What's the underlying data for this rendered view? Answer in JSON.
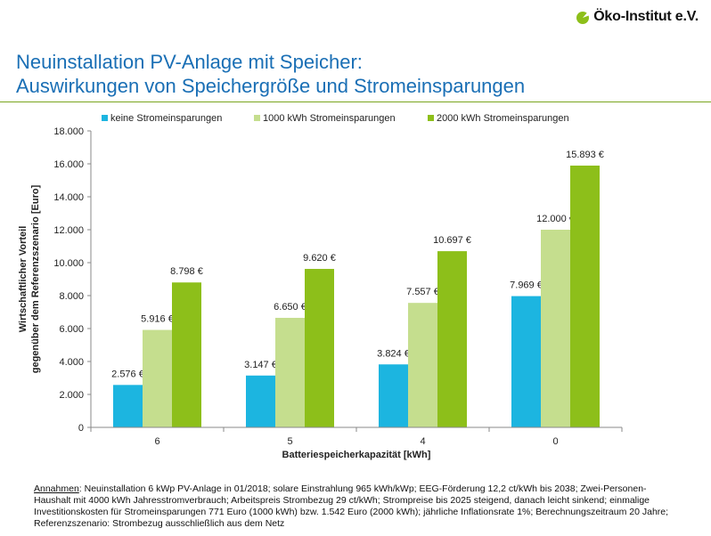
{
  "logo": {
    "text": "Öko-Institut e.V.",
    "mark_color": "#8dbf1a"
  },
  "title": {
    "line1": "Neuinstallation PV-Anlage mit Speicher:",
    "line2": "Auswirkungen von Speichergröße und Stromeinsparungen"
  },
  "notes": {
    "heading": "Annahmen",
    "text": ": Neuinstallation 6 kWp PV-Anlage in 01/2018; solare Einstrahlung 965 kWh/kWp; EEG-Förderung 12,2 ct/kWh bis 2038; Zwei-Personen-Haushalt mit 4000 kWh Jahresstromverbrauch; Arbeitspreis Strombezug 29 ct/kWh; Strompreise bis 2025 steigend, danach leicht sinkend; einmalige Investitionskosten für Stromeinsparungen 771 Euro (1000 kWh) bzw. 1.542 Euro (2000 kWh); jährliche Inflationsrate 1%; Berechnungszeitraum 20 Jahre; Referenzszenario: Strombezug ausschließlich aus dem Netz"
  },
  "chart_data": {
    "type": "bar",
    "categories": [
      "6",
      "5",
      "4",
      "0"
    ],
    "xlabel": "Batteriespeicherkapazität [kWh]",
    "ylabel_line1": "Wirtschaftlicher Vorteil",
    "ylabel_line2": "gegenüber dem Referenzszenario [Euro]",
    "ylim": [
      0,
      18000
    ],
    "ytick_step": 2000,
    "ytick_labels": [
      "0",
      "2.000",
      "4.000",
      "6.000",
      "8.000",
      "10.000",
      "12.000",
      "14.000",
      "16.000",
      "18.000"
    ],
    "grid": false,
    "legend_position": "top",
    "series": [
      {
        "name": "keine Stromeinsparungen",
        "color": "#1cb5e0",
        "values": [
          2576,
          3147,
          3824,
          7969
        ],
        "labels": [
          "2.576 €",
          "3.147 €",
          "3.824 €",
          "7.969 €"
        ]
      },
      {
        "name": "1000 kWh Stromeinsparungen",
        "color": "#c5de8e",
        "values": [
          5916,
          6650,
          7557,
          12000
        ],
        "labels": [
          "5.916 €",
          "6.650 €",
          "7.557 €",
          "12.000 €"
        ]
      },
      {
        "name": "2000 kWh Stromeinsparungen",
        "color": "#8dbf1a",
        "values": [
          8798,
          9620,
          10697,
          15893
        ],
        "labels": [
          "8.798 €",
          "9.620 €",
          "10.697 €",
          "15.893 €"
        ]
      }
    ]
  }
}
